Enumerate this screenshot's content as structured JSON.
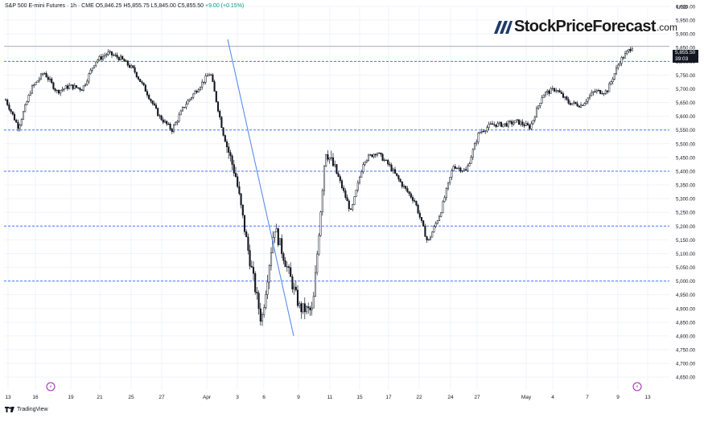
{
  "header": {
    "symbol": "S&P 500 E-mini Futures · 1h · CME",
    "open": "O5,846.25",
    "high": "H5,855.75",
    "low": "L5,845.00",
    "close": "C5,855.50",
    "change": "+9.00 (+0.15%)"
  },
  "brand": {
    "logo_text": "StockPriceForecast",
    "logo_tld": ".com",
    "platform": "TradingView"
  },
  "price_tag": {
    "price": "5,855.50",
    "countdown": "39:03"
  },
  "colors": {
    "candle": "#131722",
    "level_line": "#2962ff",
    "trend_line": "#5b8def",
    "grid": "#f0f3fa",
    "accent_change": "#089981",
    "event_marker": "#9c27b0"
  },
  "chart_data": {
    "type": "candlestick",
    "currency": "USD",
    "ylim": [
      4600,
      6000
    ],
    "y_ticks": [
      "6,000.00",
      "5,950.00",
      "5,900.00",
      "5,850.00",
      "5,800.00",
      "5,750.00",
      "5,700.00",
      "5,650.00",
      "5,600.00",
      "5,550.00",
      "5,500.00",
      "5,450.00",
      "5,400.00",
      "5,350.00",
      "5,300.00",
      "5,250.00",
      "5,200.00",
      "5,150.00",
      "5,100.00",
      "5,050.00",
      "5,000.00",
      "4,950.00",
      "4,900.00",
      "4,850.00",
      "4,800.00",
      "4,750.00",
      "4,700.00",
      "4,650.00"
    ],
    "x_ticks": [
      "13",
      "16",
      "19",
      "21",
      "25",
      "27",
      "Apr",
      "3",
      "6",
      "9",
      "11",
      "15",
      "17",
      "22",
      "24",
      "27",
      "May",
      "4",
      "7",
      "9",
      "13"
    ],
    "horizontal_levels": [
      5800,
      5550,
      5400,
      5200,
      5000
    ],
    "current_price": 5855.5,
    "trend_line": {
      "start": {
        "x": "1 Apr",
        "y": 5880
      },
      "end": {
        "x": "9 Apr",
        "y": 4800
      }
    },
    "price_path": [
      [
        "13",
        5660
      ],
      [
        "14",
        5560
      ],
      [
        "16",
        5700
      ],
      [
        "18",
        5760
      ],
      [
        "19",
        5690
      ],
      [
        "20",
        5710
      ],
      [
        "21",
        5700
      ],
      [
        "24",
        5800
      ],
      [
        "25",
        5830
      ],
      [
        "26",
        5810
      ],
      [
        "27",
        5770
      ],
      [
        "28",
        5690
      ],
      [
        "31",
        5600
      ],
      [
        "31b",
        5550
      ],
      [
        "1 Apr",
        5640
      ],
      [
        "2 Apr",
        5700
      ],
      [
        "2 Apr b",
        5760
      ],
      [
        "3",
        5540
      ],
      [
        "4",
        5380
      ],
      [
        "6",
        5100
      ],
      [
        "7",
        4850
      ],
      [
        "7b",
        5200
      ],
      [
        "8",
        5050
      ],
      [
        "8b",
        4900
      ],
      [
        "9",
        4890
      ],
      [
        "9b",
        5480
      ],
      [
        "10",
        5380
      ],
      [
        "10b",
        5250
      ],
      [
        "11",
        5440
      ],
      [
        "14",
        5470
      ],
      [
        "15",
        5420
      ],
      [
        "16",
        5350
      ],
      [
        "17",
        5290
      ],
      [
        "21",
        5140
      ],
      [
        "22",
        5250
      ],
      [
        "23",
        5420
      ],
      [
        "24",
        5400
      ],
      [
        "25",
        5540
      ],
      [
        "28",
        5570
      ],
      [
        "29",
        5570
      ],
      [
        "30",
        5580
      ],
      [
        "1 May",
        5560
      ],
      [
        "2 May",
        5680
      ],
      [
        "5",
        5700
      ],
      [
        "6",
        5650
      ],
      [
        "7",
        5640
      ],
      [
        "8",
        5690
      ],
      [
        "9",
        5690
      ],
      [
        "12",
        5800
      ],
      [
        "12b",
        5855.5
      ]
    ]
  }
}
